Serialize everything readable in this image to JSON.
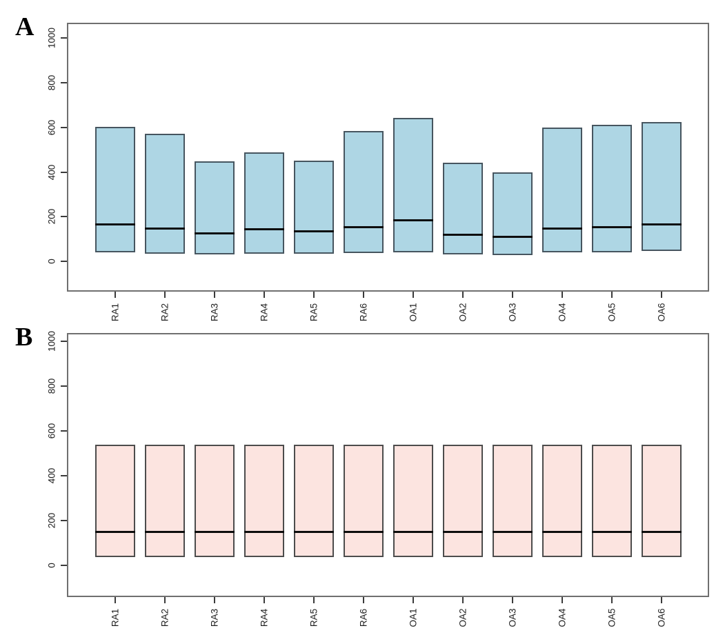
{
  "figure": {
    "panels": [
      {
        "label": "A"
      },
      {
        "label": "B"
      }
    ]
  },
  "chart_data": [
    {
      "type": "box",
      "panel_label": "A",
      "title": "",
      "xlabel": "",
      "ylabel": "",
      "categories": [
        "RA1",
        "RA2",
        "RA3",
        "RA4",
        "RA5",
        "RA6",
        "OA1",
        "OA2",
        "OA3",
        "OA4",
        "OA5",
        "OA6"
      ],
      "boxes": [
        {
          "category": "RA1",
          "min": 40,
          "median": 167,
          "max": 602
        },
        {
          "category": "RA2",
          "min": 36,
          "median": 148,
          "max": 570
        },
        {
          "category": "RA3",
          "min": 30,
          "median": 126,
          "max": 447
        },
        {
          "category": "RA4",
          "min": 35,
          "median": 143,
          "max": 487
        },
        {
          "category": "RA5",
          "min": 35,
          "median": 135,
          "max": 452
        },
        {
          "category": "RA6",
          "min": 37,
          "median": 153,
          "max": 585
        },
        {
          "category": "OA1",
          "min": 40,
          "median": 185,
          "max": 641
        },
        {
          "category": "OA2",
          "min": 30,
          "median": 120,
          "max": 443
        },
        {
          "category": "OA3",
          "min": 28,
          "median": 110,
          "max": 399
        },
        {
          "category": "OA4",
          "min": 40,
          "median": 148,
          "max": 599
        },
        {
          "category": "OA5",
          "min": 40,
          "median": 153,
          "max": 610
        },
        {
          "category": "OA6",
          "min": 46,
          "median": 166,
          "max": 625
        }
      ],
      "yticks": [
        0,
        200,
        400,
        600,
        800,
        1000
      ],
      "ylim": [
        -135,
        1068
      ],
      "grid": false,
      "legend": "none",
      "box_fill": "#aed6e4",
      "box_border": "#46555f",
      "median_color": "#0d0d0d"
    },
    {
      "type": "box",
      "panel_label": "B",
      "title": "",
      "xlabel": "",
      "ylabel": "",
      "categories": [
        "RA1",
        "RA2",
        "RA3",
        "RA4",
        "RA5",
        "RA6",
        "OA1",
        "OA2",
        "OA3",
        "OA4",
        "OA5",
        "OA6"
      ],
      "boxes": [
        {
          "category": "RA1",
          "min": 35,
          "median": 148,
          "max": 537
        },
        {
          "category": "RA2",
          "min": 35,
          "median": 148,
          "max": 537
        },
        {
          "category": "RA3",
          "min": 35,
          "median": 148,
          "max": 537
        },
        {
          "category": "RA4",
          "min": 35,
          "median": 148,
          "max": 537
        },
        {
          "category": "RA5",
          "min": 35,
          "median": 148,
          "max": 537
        },
        {
          "category": "RA6",
          "min": 35,
          "median": 148,
          "max": 537
        },
        {
          "category": "OA1",
          "min": 35,
          "median": 148,
          "max": 537
        },
        {
          "category": "OA2",
          "min": 35,
          "median": 148,
          "max": 537
        },
        {
          "category": "OA3",
          "min": 35,
          "median": 148,
          "max": 537
        },
        {
          "category": "OA4",
          "min": 35,
          "median": 148,
          "max": 537
        },
        {
          "category": "OA5",
          "min": 35,
          "median": 148,
          "max": 537
        },
        {
          "category": "OA6",
          "min": 35,
          "median": 148,
          "max": 537
        }
      ],
      "yticks": [
        0,
        200,
        400,
        600,
        800,
        1000
      ],
      "ylim": [
        -142,
        1037
      ],
      "grid": false,
      "legend": "none",
      "box_fill": "#fce4e0",
      "box_border": "#4c4c4c",
      "median_color": "#0d0d0d"
    }
  ]
}
